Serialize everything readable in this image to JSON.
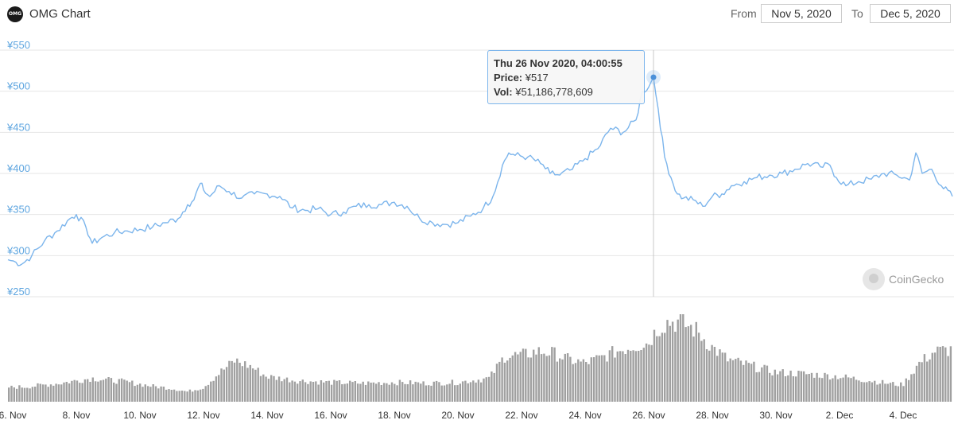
{
  "header": {
    "logo_text": "OMG",
    "title": "OMG Chart",
    "from_label": "From",
    "from_value": "Nov 5, 2020",
    "to_label": "To",
    "to_value": "Dec 5, 2020"
  },
  "tooltip": {
    "date": "Thu 26 Nov 2020, 04:00:55",
    "price_label": "Price:",
    "price_value": "¥517",
    "vol_label": "Vol:",
    "vol_value": "¥51,186,778,609"
  },
  "watermark": "CoinGecko",
  "colors": {
    "line": "#7cb5ec",
    "bars": "#a0a0a0",
    "grid": "#e6e6e6",
    "yaxis_text": "#5fa6e0"
  },
  "chart_data": {
    "type": "line",
    "title": "OMG Chart",
    "ylim": [
      250,
      550
    ],
    "yticks": [
      "¥550",
      "¥500",
      "¥450",
      "¥400",
      "¥350",
      "¥300",
      "¥250"
    ],
    "ytick_values": [
      550,
      500,
      450,
      400,
      350,
      300,
      250
    ],
    "xlim": [
      5.85,
      35.55
    ],
    "xtick_labels": [
      "6. Nov",
      "8. Nov",
      "10. Nov",
      "12. Nov",
      "14. Nov",
      "16. Nov",
      "18. Nov",
      "20. Nov",
      "22. Nov",
      "24. Nov",
      "26. Nov",
      "28. Nov",
      "30. Nov",
      "2. Dec",
      "4. Dec"
    ],
    "xtick_days": [
      6,
      8,
      10,
      12,
      14,
      16,
      18,
      20,
      22,
      24,
      26,
      28,
      30,
      32,
      34
    ],
    "grid": true,
    "series": [
      {
        "kind": "price",
        "x_day": [
          5.85,
          6.1,
          6.3,
          6.6,
          7.0,
          7.4,
          7.8,
          8.0,
          8.3,
          8.5,
          8.8,
          9.2,
          9.6,
          10.0,
          10.4,
          10.8,
          11.2,
          11.5,
          11.7,
          11.9,
          12.0,
          12.2,
          12.5,
          12.8,
          13.2,
          13.6,
          14.0,
          14.4,
          14.8,
          15.2,
          15.6,
          16.0,
          16.4,
          16.8,
          17.2,
          17.6,
          18.0,
          18.4,
          18.8,
          19.2,
          19.6,
          20.0,
          20.4,
          20.8,
          21.1,
          21.4,
          21.6,
          21.8,
          22.2,
          22.6,
          22.9,
          23.2,
          23.6,
          24.0,
          24.4,
          24.8,
          25.2,
          25.6,
          25.8,
          26.0,
          26.15,
          26.3,
          26.5,
          26.7,
          26.9,
          27.1,
          27.4,
          27.7,
          28.0,
          28.3,
          28.6,
          29.0,
          29.4,
          29.8,
          30.2,
          30.6,
          31.0,
          31.4,
          31.7,
          31.9,
          32.2,
          32.6,
          33.0,
          33.4,
          33.8,
          34.2,
          34.4,
          34.6,
          34.9,
          35.2,
          35.55
        ],
        "y": [
          295,
          292,
          290,
          300,
          318,
          330,
          345,
          350,
          335,
          315,
          322,
          328,
          330,
          332,
          335,
          340,
          345,
          362,
          368,
          388,
          380,
          372,
          385,
          378,
          370,
          375,
          375,
          372,
          358,
          355,
          357,
          350,
          353,
          360,
          362,
          362,
          365,
          360,
          345,
          340,
          338,
          340,
          348,
          358,
          372,
          410,
          425,
          422,
          420,
          412,
          400,
          398,
          405,
          418,
          430,
          455,
          450,
          465,
          500,
          505,
          517,
          478,
          420,
          395,
          375,
          370,
          368,
          360,
          372,
          375,
          385,
          390,
          395,
          398,
          400,
          405,
          412,
          408,
          410,
          395,
          385,
          390,
          393,
          400,
          398,
          392,
          425,
          400,
          405,
          385,
          372
        ]
      },
      {
        "kind": "volume",
        "x_day": [
          5.85,
          6.5,
          7.5,
          8.5,
          9.5,
          10.5,
          11.0,
          11.5,
          12.0,
          12.5,
          13.0,
          13.5,
          14.0,
          15.0,
          16.0,
          17.0,
          18.0,
          19.0,
          20.0,
          21.0,
          21.5,
          22.0,
          22.5,
          23.0,
          23.5,
          24.0,
          24.5,
          25.0,
          25.5,
          26.0,
          26.3,
          26.6,
          27.0,
          27.5,
          28.0,
          28.5,
          29.0,
          30.0,
          31.0,
          32.0,
          33.0,
          33.5,
          34.0,
          34.5,
          35.0,
          35.55
        ],
        "y": [
          0.17,
          0.18,
          0.22,
          0.28,
          0.24,
          0.18,
          0.16,
          0.12,
          0.17,
          0.34,
          0.49,
          0.42,
          0.3,
          0.25,
          0.23,
          0.22,
          0.23,
          0.22,
          0.23,
          0.28,
          0.55,
          0.55,
          0.6,
          0.58,
          0.5,
          0.46,
          0.52,
          0.6,
          0.66,
          0.7,
          0.88,
          0.95,
          0.95,
          0.85,
          0.65,
          0.5,
          0.45,
          0.35,
          0.33,
          0.3,
          0.25,
          0.22,
          0.2,
          0.45,
          0.6,
          0.62
        ]
      }
    ],
    "highlight": {
      "x_day": 26.15,
      "y": 517
    }
  }
}
